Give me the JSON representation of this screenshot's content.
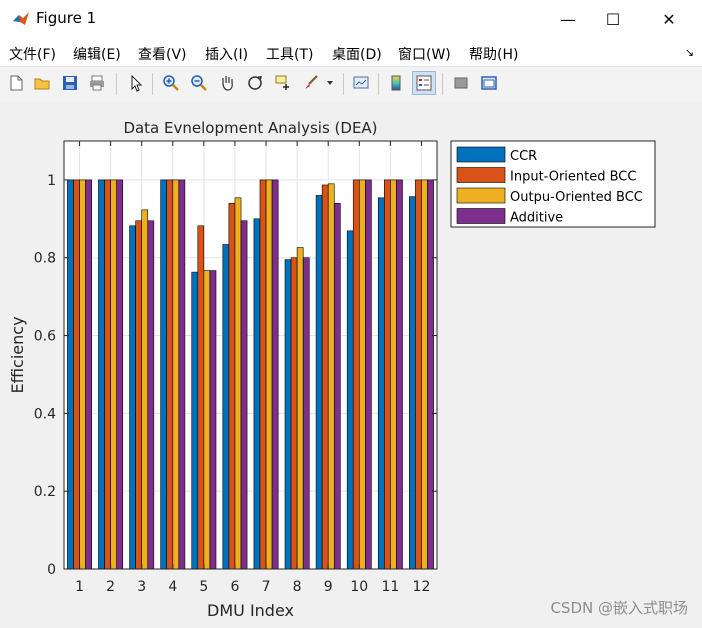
{
  "window": {
    "title": "Figure 1",
    "minimize_glyph": "—",
    "maximize_glyph": "☐",
    "close_glyph": "✕"
  },
  "menubar": {
    "items": [
      "文件(F)",
      "编辑(E)",
      "查看(V)",
      "插入(I)",
      "工具(T)",
      "桌面(D)",
      "窗口(W)",
      "帮助(H)"
    ],
    "overflow_glyph": "↘"
  },
  "toolbar": {
    "buttons": [
      "new-figure-icon",
      "open-file-icon",
      "save-icon",
      "print-icon",
      "select-arrow-icon",
      "zoom-in-icon",
      "zoom-out-icon",
      "pan-hand-icon",
      "rotate-3d-icon",
      "data-cursor-icon",
      "brush-icon",
      "brush-dropdown-icon",
      "link-plot-icon",
      "colorbar-icon",
      "legend-icon",
      "hide-plot-tools-icon",
      "show-plot-tools-icon"
    ]
  },
  "watermark": "CSDN @嵌入式职场",
  "chart_data": {
    "type": "bar",
    "title": "Data Evnelopment Analysis (DEA)",
    "xlabel": "DMU Index",
    "ylabel": "Efficiency",
    "categories": [
      "1",
      "2",
      "3",
      "4",
      "5",
      "6",
      "7",
      "8",
      "9",
      "10",
      "11",
      "12"
    ],
    "ylim": [
      0,
      1.1
    ],
    "yticks": [
      0,
      0.2,
      0.4,
      0.6,
      0.8,
      1
    ],
    "ytick_labels": [
      "0",
      "0.2",
      "0.4",
      "0.6",
      "0.8",
      "1"
    ],
    "grid": true,
    "legend_position": "outside-top-right",
    "series": [
      {
        "name": "CCR",
        "color": "#0072BD",
        "values": [
          1,
          1,
          0.882,
          1,
          0.763,
          0.834,
          0.9,
          0.795,
          0.96,
          0.869,
          0.954,
          0.957
        ]
      },
      {
        "name": "Input-Oriented BCC",
        "color": "#D95319",
        "values": [
          1,
          1,
          0.895,
          1,
          0.882,
          0.94,
          1,
          0.8,
          0.987,
          1,
          1,
          1
        ]
      },
      {
        "name": "Outpu-Oriented BCC",
        "color": "#EDB120",
        "values": [
          1,
          1,
          0.923,
          1,
          0.767,
          0.954,
          1,
          0.826,
          0.99,
          1,
          1,
          1
        ]
      },
      {
        "name": "Additive",
        "color": "#7E2F8E",
        "values": [
          1,
          1,
          0.895,
          1,
          0.767,
          0.895,
          1,
          0.8,
          0.94,
          1,
          1,
          1
        ]
      }
    ]
  }
}
